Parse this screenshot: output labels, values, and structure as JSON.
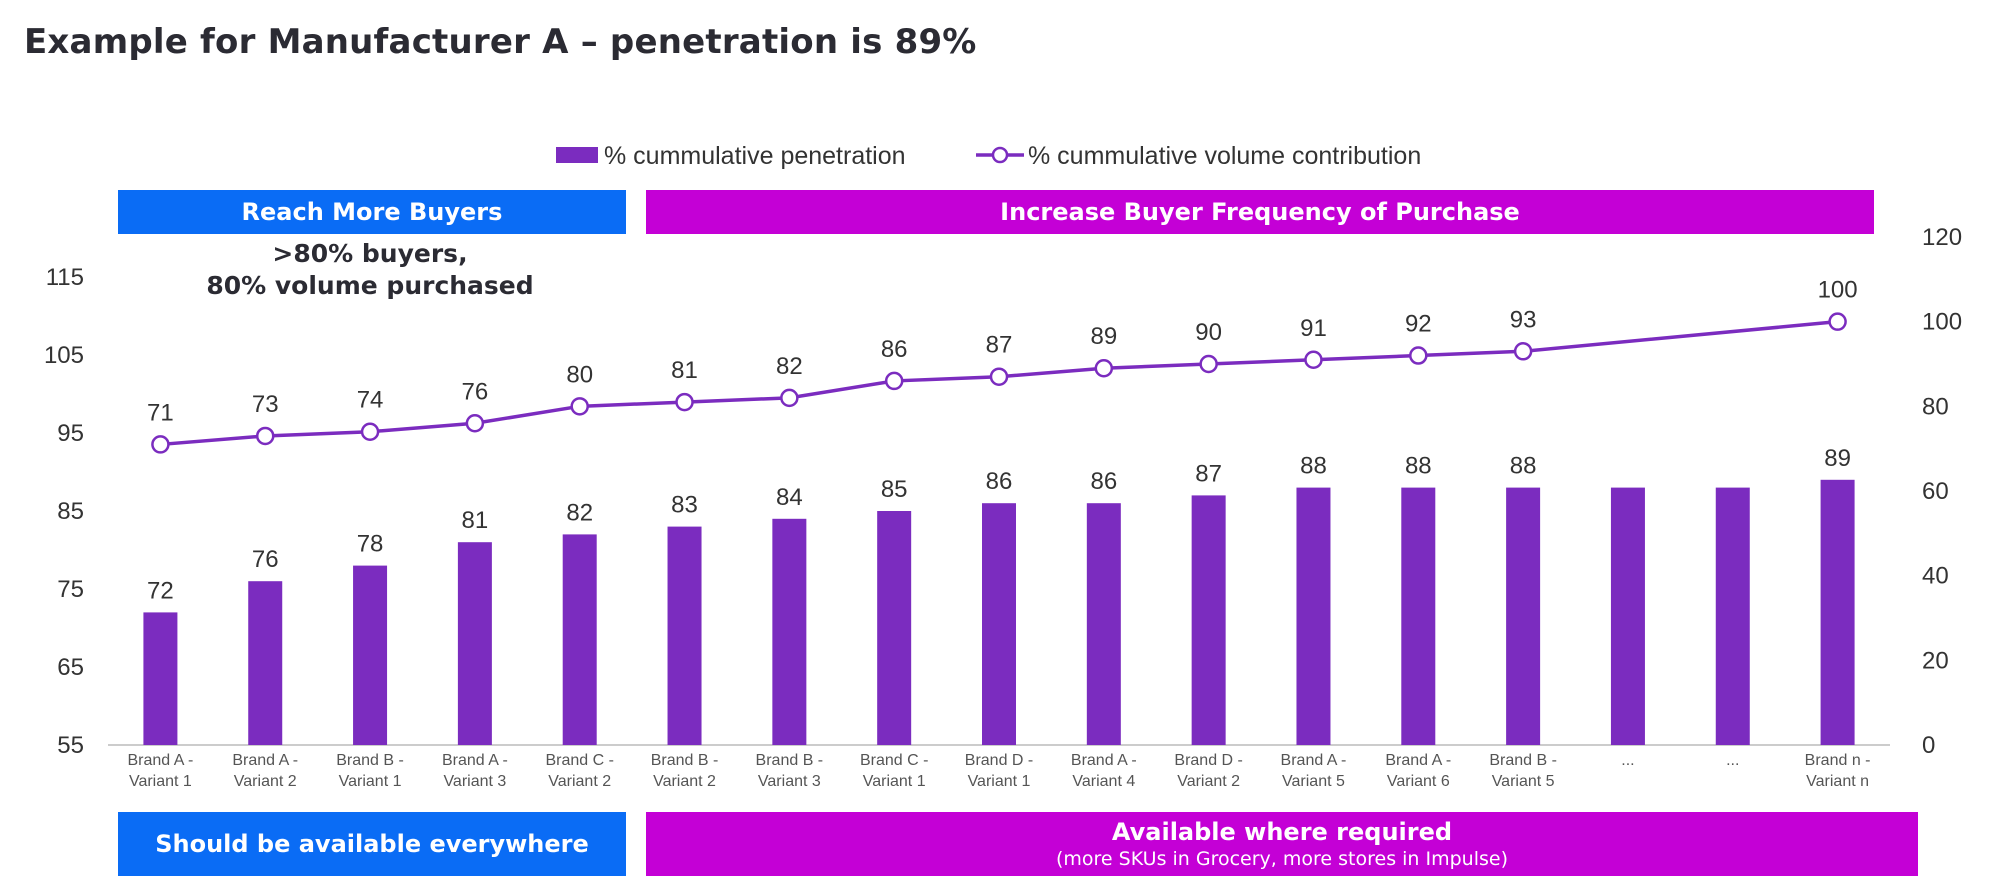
{
  "title": "Example for Manufacturer A – penetration is 89%",
  "banners": {
    "top_left": "Reach More Buyers",
    "top_right": "Increase Buyer Frequency of Purchase",
    "bottom_left": "Should be available everywhere",
    "bottom_right": "Available where required",
    "bottom_right_sub": "(more SKUs in Grocery, more stores in Impulse)"
  },
  "annotation": {
    "line1": ">80% buyers,",
    "line2": "80% volume purchased"
  },
  "colors": {
    "bar": "#7b2cbf",
    "line": "#7b2cbf",
    "banner_blue": "#0a6cf5",
    "banner_magenta": "#c400d6",
    "axis": "#bbbbbb",
    "text": "#333333"
  },
  "chart_data": {
    "type": "bar",
    "categories": [
      [
        "Brand A -",
        "Variant 1"
      ],
      [
        "Brand A -",
        "Variant 2"
      ],
      [
        "Brand B -",
        "Variant 1"
      ],
      [
        "Brand A -",
        "Variant 3"
      ],
      [
        "Brand C -",
        "Variant 2"
      ],
      [
        "Brand B -",
        "Variant 2"
      ],
      [
        "Brand B -",
        "Variant 3"
      ],
      [
        "Brand C -",
        "Variant 1"
      ],
      [
        "Brand D -",
        "Variant 1"
      ],
      [
        "Brand A -",
        "Variant 4"
      ],
      [
        "Brand D -",
        "Variant 2"
      ],
      [
        "Brand A -",
        "Variant 5"
      ],
      [
        "Brand A -",
        "Variant 6"
      ],
      [
        "Brand B -",
        "Variant 5"
      ],
      [
        "...",
        ""
      ],
      [
        "...",
        ""
      ],
      [
        "Brand n -",
        "Variant n"
      ]
    ],
    "series": [
      {
        "name": "% cummulative penetration",
        "type": "bar",
        "axis": "left",
        "values": [
          72,
          76,
          78,
          81,
          82,
          83,
          84,
          85,
          86,
          86,
          87,
          88,
          88,
          88,
          88,
          88,
          89
        ],
        "labels": [
          "72",
          "76",
          "78",
          "81",
          "82",
          "83",
          "84",
          "85",
          "86",
          "86",
          "87",
          "88",
          "88",
          "88",
          "",
          "",
          "89"
        ]
      },
      {
        "name": "% cummulative volume contribution",
        "type": "line",
        "axis": "right",
        "marker": "open-circle",
        "values": [
          71,
          73,
          74,
          76,
          80,
          81,
          82,
          86,
          87,
          89,
          90,
          91,
          92,
          93,
          null,
          null,
          100
        ],
        "labels": [
          "71",
          "73",
          "74",
          "76",
          "80",
          "81",
          "82",
          "86",
          "87",
          "89",
          "90",
          "91",
          "92",
          "93",
          "",
          "",
          "100"
        ]
      }
    ],
    "y_left": {
      "min": 55,
      "max": 115,
      "ticks": [
        "55",
        "65",
        "75",
        "85",
        "95",
        "105",
        "115"
      ]
    },
    "y_right": {
      "min": 0,
      "max": 120,
      "ticks": [
        "0",
        "20",
        "40",
        "60",
        "80",
        "100",
        "120"
      ]
    },
    "grid": false,
    "legend_position": "top-center"
  }
}
